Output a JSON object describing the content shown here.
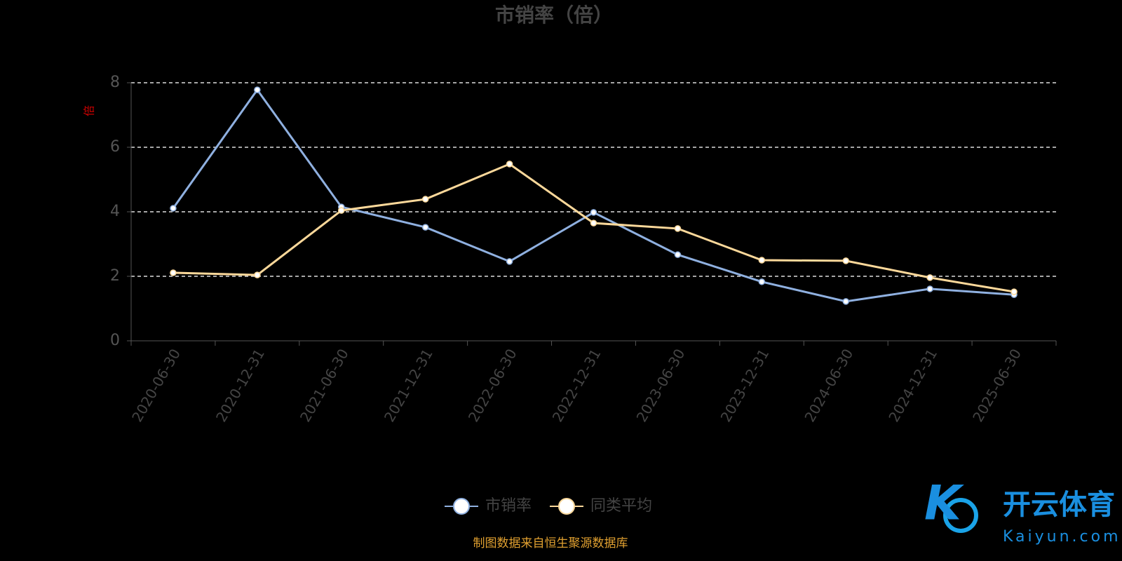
{
  "chart_data": {
    "type": "line",
    "title": "市销率（倍）",
    "y_label": "倍",
    "categories": [
      "2020-06-30",
      "2020-12-31",
      "2021-06-30",
      "2021-12-31",
      "2022-06-30",
      "2022-12-31",
      "2023-06-30",
      "2023-12-31",
      "2024-06-30",
      "2024-12-31",
      "2025-06-30"
    ],
    "series": [
      {
        "name": "市销率",
        "color": "#8fb0e0",
        "values": [
          4.11,
          7.78,
          4.15,
          3.52,
          2.46,
          3.98,
          2.67,
          1.83,
          1.22,
          1.61,
          1.43
        ]
      },
      {
        "name": "同类平均",
        "color": "#fbd89a",
        "values": [
          2.11,
          2.04,
          4.04,
          4.39,
          5.48,
          3.65,
          3.48,
          2.5,
          2.48,
          1.96,
          1.52
        ]
      }
    ],
    "ylim": [
      0,
      8
    ],
    "yticks": [
      0,
      2,
      4,
      6,
      8
    ],
    "grid": true,
    "legend": "bottom"
  },
  "footer": "制图数据来自恒生聚源数据库",
  "watermark": {
    "name": "开云体育",
    "site": "Kaiyun.com"
  }
}
